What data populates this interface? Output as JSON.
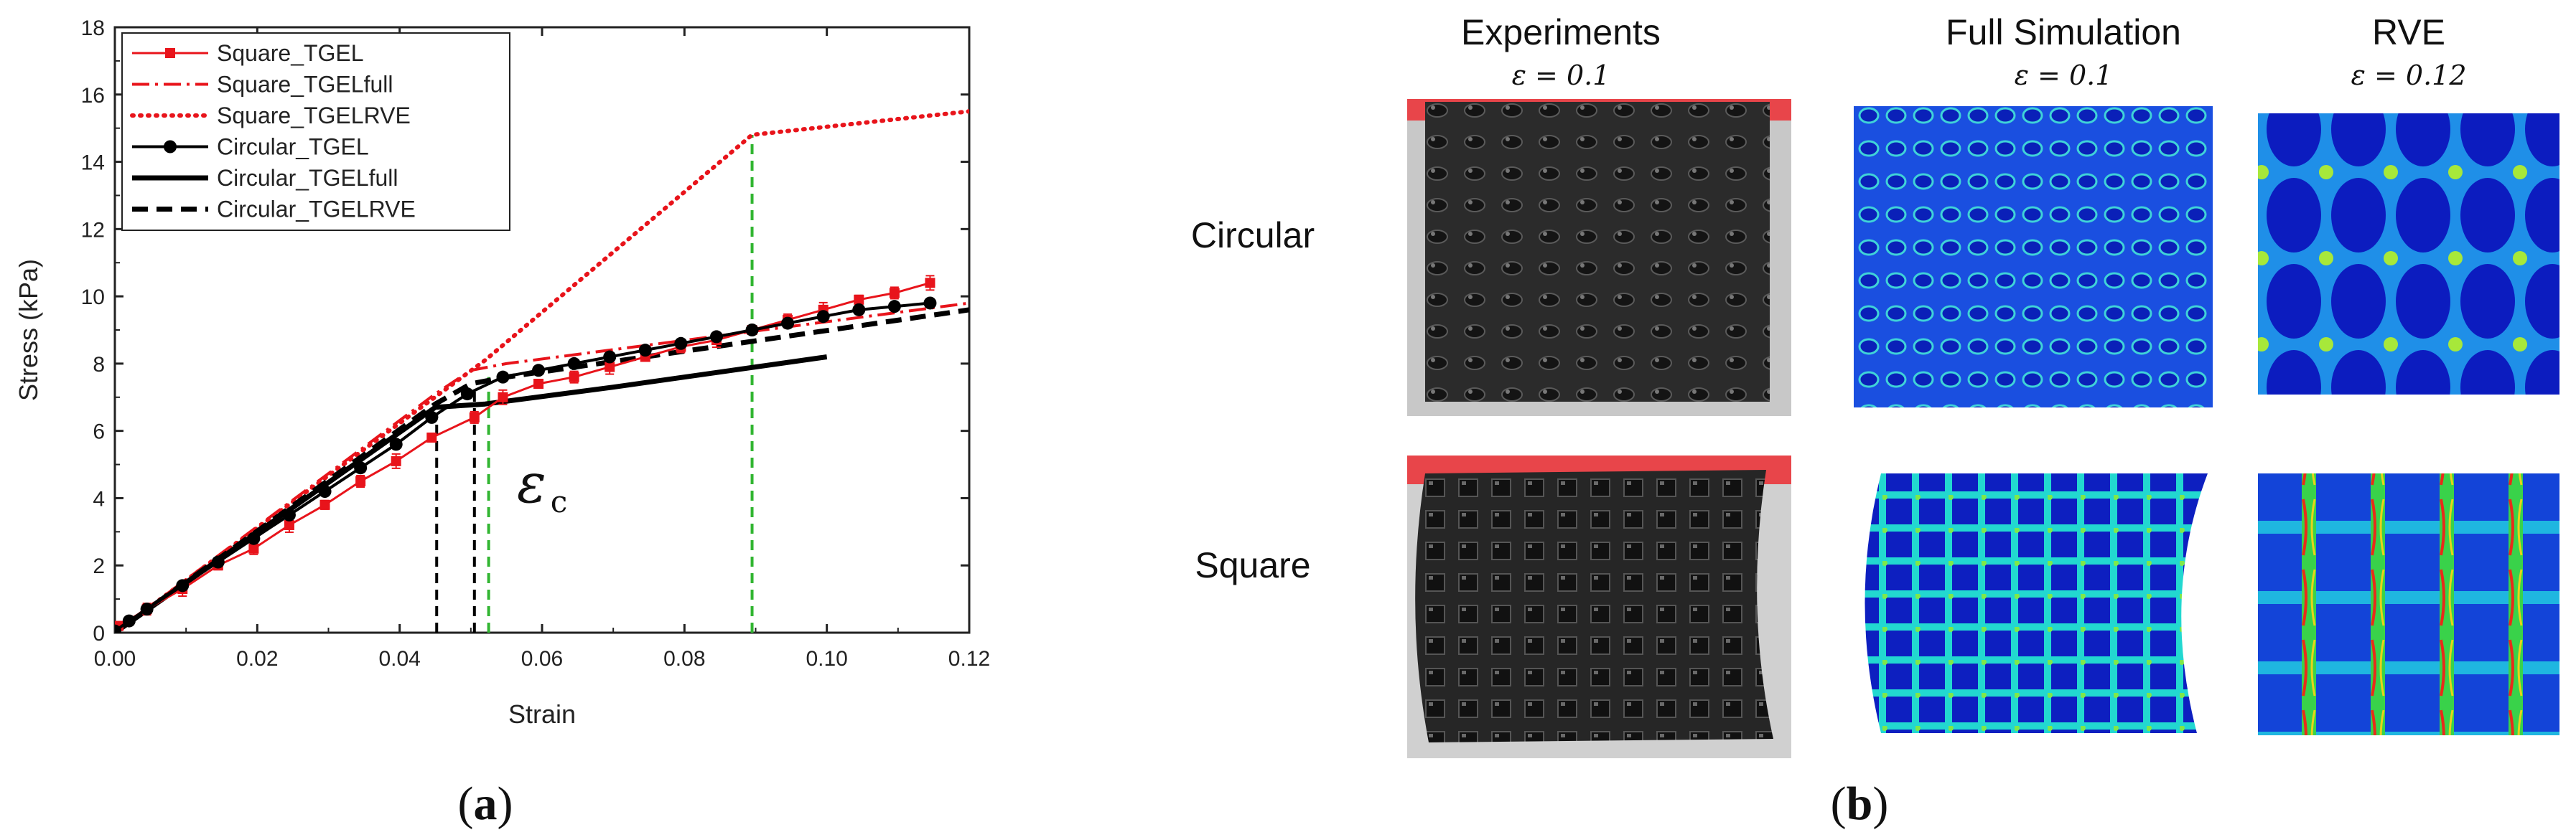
{
  "chart_data": {
    "type": "line",
    "xlabel": "Strain",
    "ylabel": "Stress (kPa)",
    "xlim": [
      0,
      0.12
    ],
    "ylim": [
      0,
      18
    ],
    "xticks": [
      "0.00",
      "0.02",
      "0.04",
      "0.06",
      "0.08",
      "0.10",
      "0.12"
    ],
    "yticks": [
      "0",
      "2",
      "4",
      "6",
      "8",
      "10",
      "12",
      "14",
      "16",
      "18"
    ],
    "grid": false,
    "legend_position": "top-left",
    "annotation": "ε",
    "annotation_sub": "c",
    "series": [
      {
        "name": "Square_TGEL",
        "color": "#e8141b",
        "style": "solid-square-errorbar",
        "x": [
          0.0005,
          0.0045,
          0.0095,
          0.0145,
          0.0195,
          0.0245,
          0.0295,
          0.0345,
          0.0395,
          0.0445,
          0.0505,
          0.0545,
          0.0595,
          0.0645,
          0.0695,
          0.0745,
          0.0795,
          0.0845,
          0.0895,
          0.0945,
          0.0995,
          0.1045,
          0.1095,
          0.1145
        ],
        "y": [
          0.2,
          0.7,
          1.3,
          2.0,
          2.5,
          3.2,
          3.8,
          4.5,
          5.1,
          5.8,
          6.4,
          7.0,
          7.4,
          7.6,
          7.9,
          8.2,
          8.5,
          8.7,
          9.0,
          9.3,
          9.6,
          9.9,
          10.1,
          10.4
        ]
      },
      {
        "name": "Square_TGELfull",
        "color": "#e8141b",
        "style": "dashdot",
        "x": [
          0.0,
          0.045,
          0.05,
          0.055,
          0.12
        ],
        "y": [
          0.0,
          7.1,
          7.8,
          8.0,
          9.8
        ]
      },
      {
        "name": "Square_TGELRVE",
        "color": "#e8141b",
        "style": "dotted",
        "x": [
          0.0,
          0.052,
          0.0895,
          0.12
        ],
        "y": [
          0.0,
          8.1,
          14.8,
          15.5
        ]
      },
      {
        "name": "Circular_TGEL",
        "color": "#000000",
        "style": "solid-circle",
        "x": [
          0.0,
          0.002,
          0.0045,
          0.0095,
          0.0145,
          0.0195,
          0.0245,
          0.0295,
          0.0345,
          0.0395,
          0.0445,
          0.0495,
          0.0545,
          0.0595,
          0.0645,
          0.0695,
          0.0745,
          0.0795,
          0.0845,
          0.0895,
          0.0945,
          0.0995,
          0.1045,
          0.1095,
          0.1145
        ],
        "y": [
          0.05,
          0.35,
          0.7,
          1.4,
          2.1,
          2.8,
          3.5,
          4.2,
          4.9,
          5.6,
          6.4,
          7.1,
          7.6,
          7.8,
          8.0,
          8.2,
          8.4,
          8.6,
          8.8,
          9.0,
          9.2,
          9.4,
          9.6,
          9.7,
          9.8
        ]
      },
      {
        "name": "Circular_TGELfull",
        "color": "#000000",
        "style": "solid-thick",
        "x": [
          0.0,
          0.045,
          0.052,
          0.07,
          0.1
        ],
        "y": [
          0.0,
          6.7,
          6.8,
          7.3,
          8.2
        ]
      },
      {
        "name": "Circular_TGELRVE",
        "color": "#000000",
        "style": "dashed-thick",
        "x": [
          0.0,
          0.045,
          0.05,
          0.055,
          0.12
        ],
        "y": [
          0.0,
          6.8,
          7.4,
          7.6,
          9.6
        ]
      }
    ],
    "vlines": [
      {
        "x": 0.0452,
        "y": 6.5,
        "color": "#000000"
      },
      {
        "x": 0.0505,
        "y": 7.2,
        "color": "#000000"
      },
      {
        "x": 0.0525,
        "y": 7.6,
        "color": "#31b531"
      },
      {
        "x": 0.0895,
        "y": 14.8,
        "color": "#31b531"
      }
    ]
  },
  "panel_a_label": "(a)",
  "panel_b_label": "(b)",
  "panel_a_letter": "a",
  "panel_b_letter": "b",
  "panel_b": {
    "columns": [
      {
        "title": "Experiments",
        "strain": "ε = 0.1"
      },
      {
        "title": "Full Simulation",
        "strain": "ε = 0.1"
      },
      {
        "title": "RVE",
        "strain": "ε = 0.12"
      }
    ],
    "rows": [
      "Circular",
      "Square"
    ]
  }
}
